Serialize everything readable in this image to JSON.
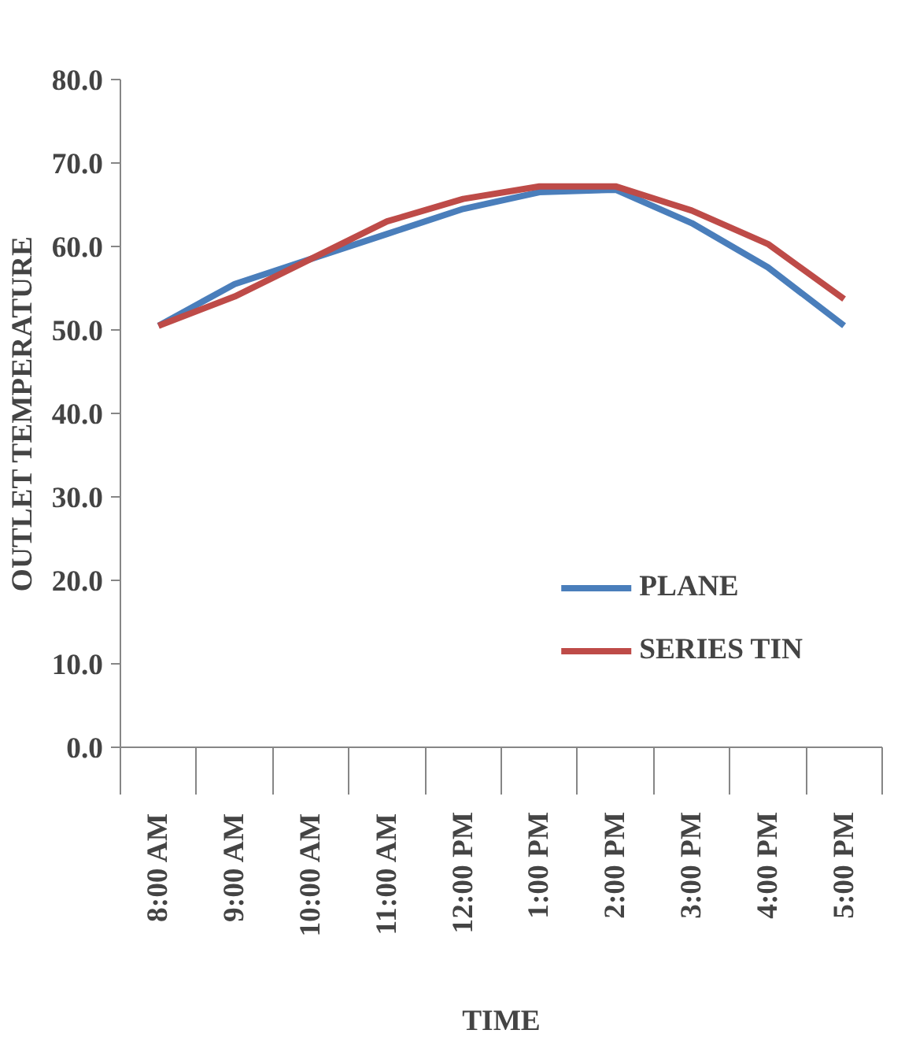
{
  "chart_data": {
    "type": "line",
    "xlabel": "TIME",
    "ylabel": "OUTLET TEMPERATURE",
    "categories": [
      "8:00 AM",
      "9:00 AM",
      "10:00 AM",
      "11:00 AM",
      "12:00 PM",
      "1:00 PM",
      "2:00 PM",
      "3:00 PM",
      "4:00 PM",
      "5:00 PM"
    ],
    "series": [
      {
        "name": "PLANE",
        "color": "#4a7ebb",
        "values": [
          50.5,
          55.5,
          58.5,
          61.5,
          64.5,
          66.5,
          66.8,
          62.8,
          57.5,
          50.5
        ]
      },
      {
        "name": "SERIES TIN",
        "color": "#be4b48",
        "values": [
          50.5,
          54.0,
          58.5,
          63.0,
          65.7,
          67.2,
          67.2,
          64.3,
          60.3,
          53.7
        ]
      }
    ],
    "ylim": [
      0,
      80
    ],
    "yticks": [
      {
        "value": 0,
        "label": "0.0"
      },
      {
        "value": 10,
        "label": "10.0"
      },
      {
        "value": 20,
        "label": "20.0"
      },
      {
        "value": 30,
        "label": "30.0"
      },
      {
        "value": 40,
        "label": "40.0"
      },
      {
        "value": 50,
        "label": "50.0"
      },
      {
        "value": 60,
        "label": "60.0"
      },
      {
        "value": 70,
        "label": "70.0"
      },
      {
        "value": 80,
        "label": "80.0"
      }
    ],
    "grid": false,
    "legend": "bottom right",
    "marker": "none",
    "line_style": "solid"
  }
}
